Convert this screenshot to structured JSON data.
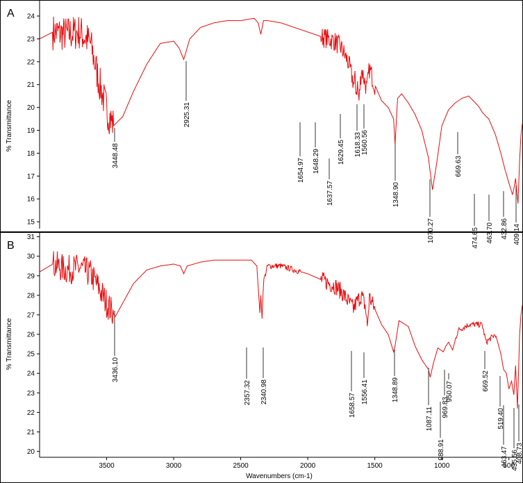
{
  "colors": {
    "trace": "#e8090b",
    "axis": "#000000",
    "frame": "#000000",
    "label_line": "#000000"
  },
  "shared_x_axis": {
    "label": "Wavenumbers (cm-1)",
    "ticks": [
      3500,
      3000,
      2500,
      2000,
      1500,
      1000,
      500
    ],
    "range": [
      4000,
      400
    ],
    "reversed": true
  },
  "chart_data": [
    {
      "type": "line",
      "panel_label": "A",
      "ylabel": "% Transmittance",
      "ylim": [
        14.7,
        24.7
      ],
      "yticks": [
        15,
        16,
        17,
        18,
        19,
        20,
        21,
        22,
        23,
        24
      ],
      "xlabel": "",
      "series": [
        {
          "color": "#e8090b",
          "x": [
            4000,
            3900,
            3800,
            3700,
            3620,
            3560,
            3500,
            3448,
            3380,
            3300,
            3200,
            3100,
            3000,
            2960,
            2925,
            2880,
            2800,
            2700,
            2600,
            2500,
            2400,
            2370,
            2350,
            2330,
            2300,
            2200,
            2100,
            2000,
            1900,
            1800,
            1750,
            1700,
            1655,
            1648,
            1638,
            1629,
            1618,
            1600,
            1560,
            1540,
            1500,
            1450,
            1400,
            1360,
            1349,
            1330,
            1300,
            1250,
            1200,
            1150,
            1100,
            1070,
            1040,
            1000,
            950,
            900,
            850,
            800,
            750,
            720,
            700,
            669,
            650,
            600,
            560,
            530,
            500,
            474,
            464,
            450,
            432,
            420,
            410,
            400
          ],
          "y": [
            23.0,
            23.3,
            23.2,
            23.3,
            22.8,
            21.2,
            19.9,
            19.2,
            19.6,
            20.7,
            21.9,
            22.8,
            22.9,
            22.6,
            22.1,
            23.0,
            23.5,
            23.7,
            23.8,
            23.8,
            23.9,
            23.7,
            23.2,
            23.8,
            23.8,
            23.7,
            23.5,
            23.3,
            23.1,
            22.9,
            22.6,
            22.0,
            21.0,
            21.2,
            20.7,
            21.0,
            20.3,
            21.7,
            20.8,
            21.7,
            21.0,
            20.3,
            20.0,
            19.5,
            18.4,
            20.4,
            20.6,
            20.2,
            19.7,
            19.0,
            17.8,
            16.4,
            17.5,
            19.2,
            19.9,
            20.2,
            20.4,
            20.5,
            20.2,
            20.0,
            19.8,
            19.6,
            19.5,
            18.8,
            18.0,
            17.3,
            16.7,
            16.2,
            16.4,
            16.9,
            15.8,
            17.7,
            18.8,
            19.3
          ],
          "noise_ranges": [
            [
              3450,
              3900,
              0.8
            ],
            [
              1500,
              1900,
              0.45
            ]
          ]
        }
      ],
      "peak_labels": [
        "3448.48",
        "2925.31",
        "1654.97",
        "1648.29",
        "1629.45",
        "1637.57",
        "1618.33",
        "1560.56",
        "1348.90",
        "1070.27",
        "669.63",
        "474.65",
        "463.70",
        "432.86",
        "409.14"
      ]
    },
    {
      "type": "line",
      "panel_label": "B",
      "ylabel": "% Transmittance",
      "ylim": [
        19.7,
        31.2
      ],
      "yticks": [
        20,
        21,
        22,
        23,
        24,
        25,
        26,
        27,
        28,
        29,
        30,
        31
      ],
      "xlabel": "Wavenumbers (cm-1)",
      "series": [
        {
          "color": "#e8090b",
          "x": [
            4000,
            3900,
            3800,
            3700,
            3620,
            3560,
            3500,
            3436,
            3380,
            3300,
            3200,
            3100,
            3000,
            2950,
            2925,
            2900,
            2800,
            2700,
            2600,
            2500,
            2420,
            2380,
            2357,
            2350,
            2341,
            2330,
            2300,
            2200,
            2100,
            2000,
            1900,
            1800,
            1750,
            1700,
            1659,
            1640,
            1600,
            1570,
            1556,
            1540,
            1500,
            1450,
            1400,
            1360,
            1349,
            1320,
            1250,
            1200,
            1150,
            1100,
            1087,
            1060,
            1030,
            989,
            970,
            950,
            920,
            880,
            800,
            700,
            670,
            600,
            560,
            540,
            519,
            500,
            480,
            463,
            450,
            436,
            420,
            410,
            400
          ],
          "y": [
            29.2,
            29.6,
            29.3,
            29.4,
            29.1,
            28.4,
            27.6,
            26.9,
            27.6,
            28.6,
            29.3,
            29.5,
            29.6,
            29.5,
            29.1,
            29.5,
            29.7,
            29.8,
            29.8,
            29.8,
            29.8,
            29.5,
            27.1,
            28.0,
            26.8,
            28.7,
            29.5,
            29.5,
            29.3,
            29.1,
            28.8,
            28.5,
            28.2,
            27.7,
            27.3,
            27.6,
            28.0,
            27.4,
            26.4,
            27.9,
            27.3,
            26.5,
            26.0,
            25.1,
            25.4,
            26.7,
            26.4,
            25.4,
            24.7,
            24.2,
            23.8,
            24.6,
            25.3,
            25.1,
            25.4,
            25.6,
            25.2,
            26.2,
            26.5,
            26.5,
            25.6,
            26.0,
            25.0,
            24.2,
            24.0,
            23.2,
            23.6,
            22.9,
            24.4,
            22.2,
            26.0,
            27.0,
            27.5
          ],
          "noise_ranges": [
            [
              3450,
              3900,
              0.75
            ],
            [
              1500,
              1900,
              0.45
            ],
            [
              2050,
              2330,
              0.15
            ],
            [
              600,
              900,
              0.15
            ]
          ]
        }
      ],
      "peak_labels": [
        "3436.10",
        "2357.32",
        "2340.98",
        "1658.57",
        "1556.41",
        "1348.89",
        "1087.11",
        "988.91",
        "969.83",
        "950.07",
        "669.52",
        "519.40",
        "463.47",
        "435.56",
        "408.73"
      ]
    }
  ]
}
